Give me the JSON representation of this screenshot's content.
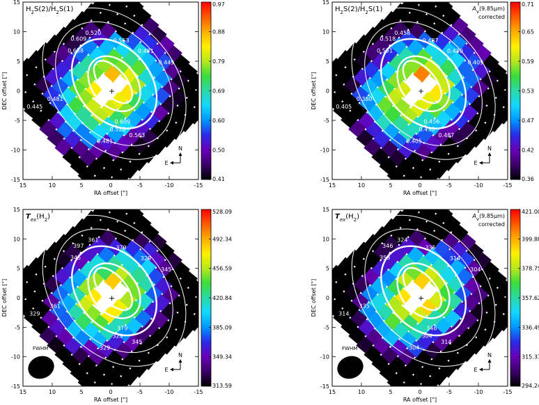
{
  "figure": {
    "colors": {
      "colormap": [
        "#000000",
        "#3a0068",
        "#6a00b8",
        "#2a2ae8",
        "#0096ff",
        "#12d8ff",
        "#2ad9a6",
        "#3bdc3b",
        "#b8e81c",
        "#fff000",
        "#ffae00",
        "#ff5a00",
        "#ff0000"
      ],
      "axis": "#000000",
      "contour": "#ffffff",
      "background": "#ffffff"
    },
    "icons": {
      "compass_north_arrow": "arrow-up",
      "compass_east_arrow": "arrow-left",
      "beam": "filled-ellipse"
    }
  },
  "chart_data": [
    {
      "type": "heatmap",
      "title": "H2S(2)/H2S(1)",
      "title_parts": {
        "a": "H",
        "a_sub": "2",
        "b": "S(2)/H",
        "b_sub": "2",
        "c": "S(1)"
      },
      "annotation": "",
      "annotation2": "",
      "xlabel": "RA offset [\"]",
      "ylabel": "DEC offset [\"]",
      "xlim": [
        15,
        -15
      ],
      "ylim": [
        -15,
        15
      ],
      "x_ticks": [
        "15",
        "10",
        "5",
        "0",
        "-5",
        "-10",
        "-15"
      ],
      "y_ticks": [
        "-15",
        "-10",
        "-5",
        "0",
        "5",
        "10",
        "15"
      ],
      "colorbar": {
        "min": 0.41,
        "max": 0.97,
        "tick_labels": [
          "0.97",
          "0.88",
          "0.79",
          "0.69",
          "0.60",
          "0.50",
          "0.41"
        ]
      },
      "contour_labels": [
        "0.520",
        "0.563",
        "0.609",
        "0.658",
        "0.481",
        "0.445",
        "0.445",
        "0.481",
        "0.609",
        "0.563",
        "0.520",
        "0.481"
      ],
      "compass": {
        "north": "N",
        "east": "E"
      },
      "beam_label": "",
      "peak_xy": [
        0,
        0
      ]
    },
    {
      "type": "heatmap",
      "title": "H2S(2)/H2S(1)",
      "title_parts": {
        "a": "H",
        "a_sub": "2",
        "b": "S(2)/H",
        "b_sub": "2",
        "c": "S(1)"
      },
      "annotation": "A",
      "annotation_sub": "v",
      "annotation_rest": "(9.85μm)",
      "annotation2": "corrected",
      "xlabel": "RA offset [\"]",
      "ylabel": "DEC offset [\"]",
      "xlim": [
        15,
        -15
      ],
      "ylim": [
        -15,
        15
      ],
      "x_ticks": [
        "15",
        "10",
        "5",
        "0",
        "-5",
        "-10",
        "-15"
      ],
      "y_ticks": [
        "-15",
        "-10",
        "-5",
        "0",
        "5",
        "10",
        "15"
      ],
      "colorbar": {
        "min": 0.36,
        "max": 0.71,
        "tick_labels": [
          "0.71",
          "0.65",
          "0.59",
          "0.53",
          "0.47",
          "0.42",
          "0.36"
        ]
      },
      "contour_labels": [
        "0.458",
        "0.487",
        "0.518",
        "0.551",
        "0.430",
        "0.405",
        "0.405",
        "0.380",
        "0.456",
        "0.487",
        "0.430",
        "0.405"
      ],
      "compass": {
        "north": "N",
        "east": "E"
      },
      "beam_label": "",
      "peak_xy": [
        0,
        0
      ]
    },
    {
      "type": "heatmap",
      "title": "Tex(H2)",
      "title_parts": {
        "a": "T",
        "a_sub": "ex",
        "b": "(H",
        "b_sub": "2",
        "c": ")"
      },
      "annotation": "",
      "annotation2": "",
      "xlabel": "RA offset [\"]",
      "ylabel": "DEC offset [\"]",
      "xlim": [
        15,
        -15
      ],
      "ylim": [
        -15,
        15
      ],
      "x_ticks": [
        "15",
        "10",
        "5",
        "0",
        "-5",
        "-10",
        "-15"
      ],
      "y_ticks": [
        "-15",
        "-10",
        "-5",
        "0",
        "5",
        "10",
        "15"
      ],
      "colorbar": {
        "min": 313.59,
        "max": 528.09,
        "tick_labels": [
          "528.09",
          "492.34",
          "456.59",
          "420.84",
          "385.09",
          "349.34",
          "313.59"
        ]
      },
      "contour_labels": [
        "361",
        "379",
        "397",
        "345",
        "329",
        "345",
        "329",
        "361",
        "379",
        "345",
        "329",
        "329"
      ],
      "compass": {
        "north": "N",
        "east": "E"
      },
      "beam_label": "FWHM",
      "peak_xy": [
        0,
        0
      ]
    },
    {
      "type": "heatmap",
      "title": "Tex(H2)",
      "title_parts": {
        "a": "T",
        "a_sub": "ex",
        "b": "(H",
        "b_sub": "2",
        "c": ")"
      },
      "annotation": "A",
      "annotation_sub": "v",
      "annotation_rest": "(9.85μm)",
      "annotation2": "corrected",
      "xlabel": "RA offset [\"]",
      "ylabel": "DEC offset [\"]",
      "xlim": [
        15,
        -15
      ],
      "ylim": [
        -15,
        15
      ],
      "x_ticks": [
        "15",
        "10",
        "5",
        "0",
        "-5",
        "-10",
        "-15"
      ],
      "y_ticks": [
        "-15",
        "-10",
        "-5",
        "0",
        "5",
        "10",
        "15"
      ],
      "colorbar": {
        "min": 294.24,
        "max": 421.0,
        "tick_labels": [
          "421.00",
          "399.88",
          "378.75",
          "357.62",
          "336.49",
          "315.37",
          "294.24"
        ]
      },
      "contour_labels": [
        "324",
        "335",
        "346",
        "358",
        "314",
        "304",
        "314",
        "335",
        "346",
        "314",
        "304",
        "304"
      ],
      "compass": {
        "north": "N",
        "east": "E"
      },
      "beam_label": "FWHM",
      "peak_xy": [
        0,
        0
      ]
    }
  ]
}
